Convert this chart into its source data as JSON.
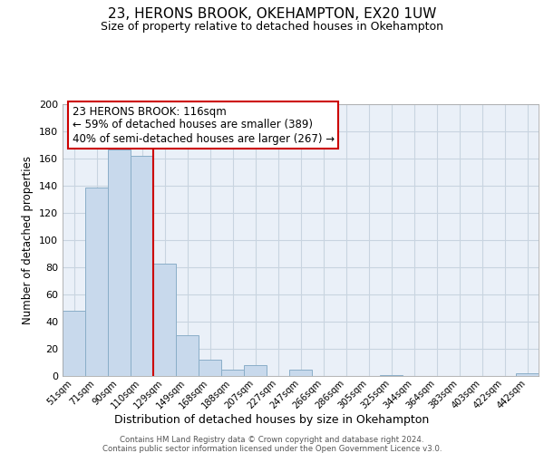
{
  "title": "23, HERONS BROOK, OKEHAMPTON, EX20 1UW",
  "subtitle": "Size of property relative to detached houses in Okehampton",
  "xlabel": "Distribution of detached houses by size in Okehampton",
  "ylabel": "Number of detached properties",
  "categories": [
    "51sqm",
    "71sqm",
    "90sqm",
    "110sqm",
    "129sqm",
    "149sqm",
    "168sqm",
    "188sqm",
    "207sqm",
    "227sqm",
    "247sqm",
    "266sqm",
    "286sqm",
    "305sqm",
    "325sqm",
    "344sqm",
    "364sqm",
    "383sqm",
    "403sqm",
    "422sqm",
    "442sqm"
  ],
  "values": [
    48,
    139,
    167,
    162,
    83,
    30,
    12,
    5,
    8,
    0,
    5,
    0,
    0,
    0,
    1,
    0,
    0,
    0,
    0,
    0,
    2
  ],
  "bar_color": "#c8d9ec",
  "bar_edge_color": "#8aaec8",
  "vline_color": "#cc0000",
  "ylim": [
    0,
    200
  ],
  "yticks": [
    0,
    20,
    40,
    60,
    80,
    100,
    120,
    140,
    160,
    180,
    200
  ],
  "annotation_title": "23 HERONS BROOK: 116sqm",
  "annotation_line1": "← 59% of detached houses are smaller (389)",
  "annotation_line2": "40% of semi-detached houses are larger (267) →",
  "annotation_box_color": "#ffffff",
  "annotation_box_edge": "#cc0000",
  "footer_line1": "Contains HM Land Registry data © Crown copyright and database right 2024.",
  "footer_line2": "Contains public sector information licensed under the Open Government Licence v3.0.",
  "plot_bg_color": "#eaf0f8",
  "grid_color": "#c8d4e0"
}
